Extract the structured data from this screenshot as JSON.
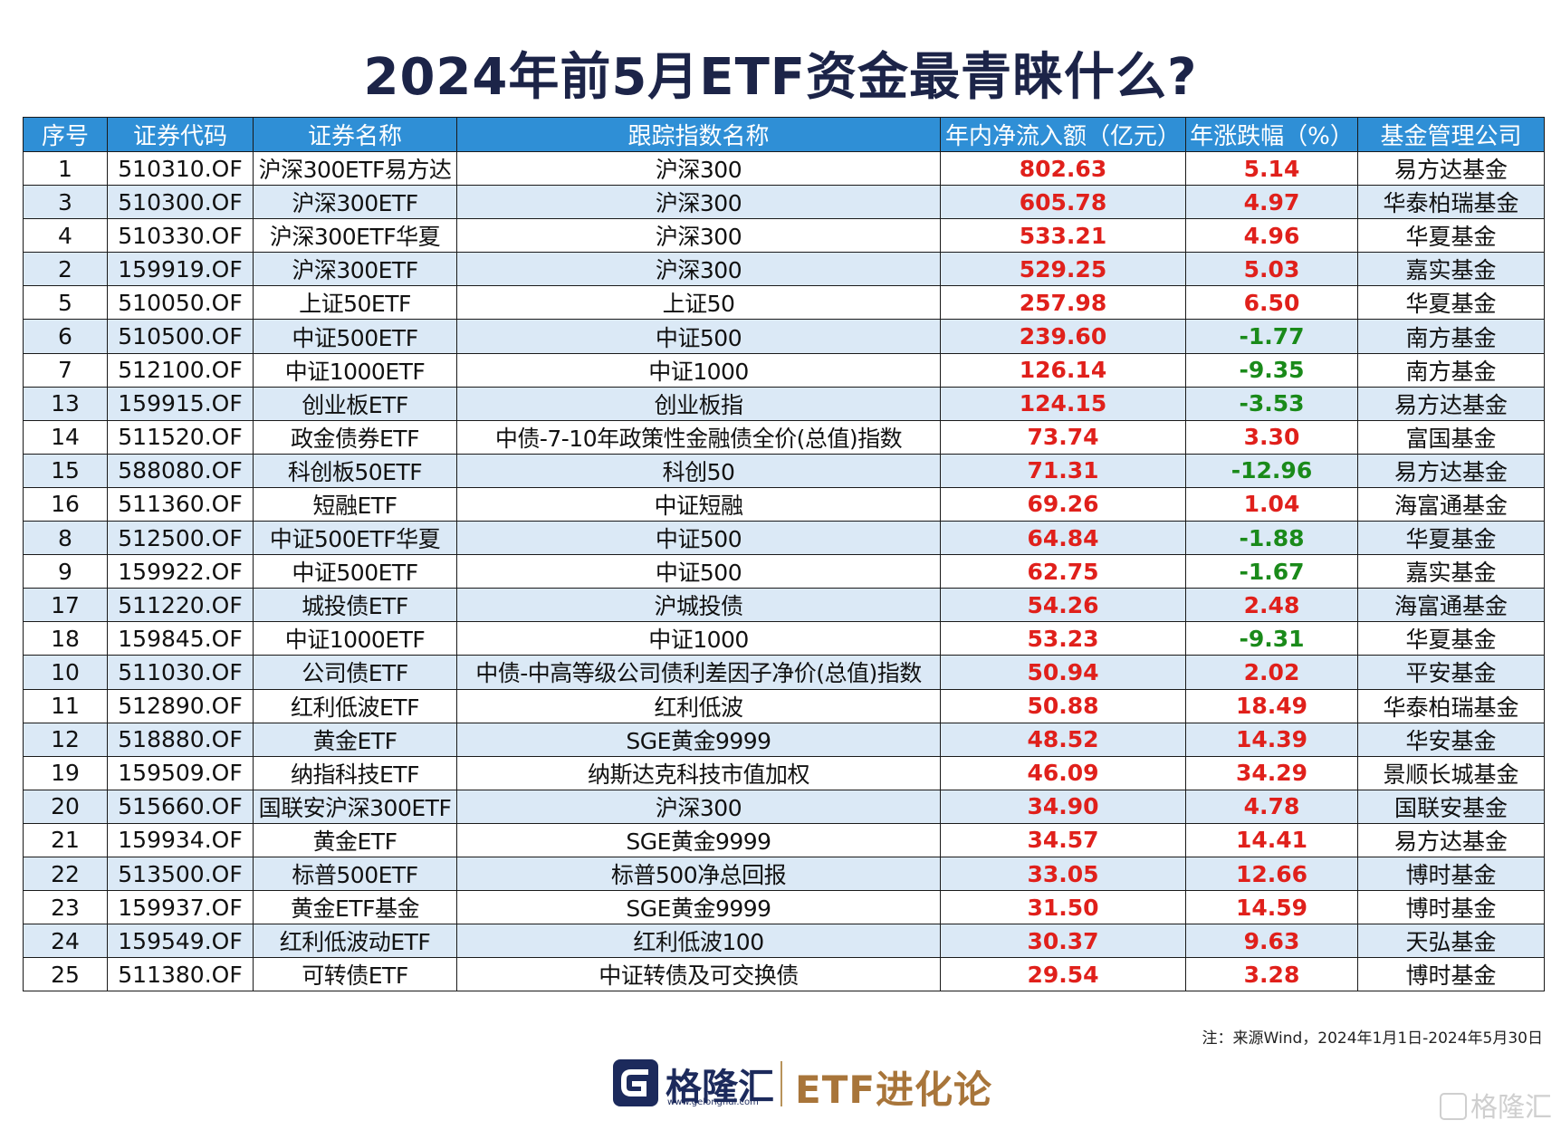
{
  "title": "2024年前5月ETF资金最青睐什么?",
  "headers": [
    "序号",
    "证券代码",
    "证券名称",
    "跟踪指数名称",
    "年内净流入额（亿元）",
    "年涨跌幅（%）",
    "基金管理公司"
  ],
  "rows": [
    {
      "no": "1",
      "code": "510310.OF",
      "name": "沪深300ETF易方达",
      "index": "沪深300",
      "flow": "802.63",
      "chg": "5.14",
      "company": "易方达基金"
    },
    {
      "no": "3",
      "code": "510300.OF",
      "name": "沪深300ETF",
      "index": "沪深300",
      "flow": "605.78",
      "chg": "4.97",
      "company": "华泰柏瑞基金"
    },
    {
      "no": "4",
      "code": "510330.OF",
      "name": "沪深300ETF华夏",
      "index": "沪深300",
      "flow": "533.21",
      "chg": "4.96",
      "company": "华夏基金"
    },
    {
      "no": "2",
      "code": "159919.OF",
      "name": "沪深300ETF",
      "index": "沪深300",
      "flow": "529.25",
      "chg": "5.03",
      "company": "嘉实基金"
    },
    {
      "no": "5",
      "code": "510050.OF",
      "name": "上证50ETF",
      "index": "上证50",
      "flow": "257.98",
      "chg": "6.50",
      "company": "华夏基金"
    },
    {
      "no": "6",
      "code": "510500.OF",
      "name": "中证500ETF",
      "index": "中证500",
      "flow": "239.60",
      "chg": "-1.77",
      "company": "南方基金"
    },
    {
      "no": "7",
      "code": "512100.OF",
      "name": "中证1000ETF",
      "index": "中证1000",
      "flow": "126.14",
      "chg": "-9.35",
      "company": "南方基金"
    },
    {
      "no": "13",
      "code": "159915.OF",
      "name": "创业板ETF",
      "index": "创业板指",
      "flow": "124.15",
      "chg": "-3.53",
      "company": "易方达基金"
    },
    {
      "no": "14",
      "code": "511520.OF",
      "name": "政金债券ETF",
      "index": "中债-7-10年政策性金融债全价(总值)指数",
      "flow": "73.74",
      "chg": "3.30",
      "company": "富国基金"
    },
    {
      "no": "15",
      "code": "588080.OF",
      "name": "科创板50ETF",
      "index": "科创50",
      "flow": "71.31",
      "chg": "-12.96",
      "company": "易方达基金"
    },
    {
      "no": "16",
      "code": "511360.OF",
      "name": "短融ETF",
      "index": "中证短融",
      "flow": "69.26",
      "chg": "1.04",
      "company": "海富通基金"
    },
    {
      "no": "8",
      "code": "512500.OF",
      "name": "中证500ETF华夏",
      "index": "中证500",
      "flow": "64.84",
      "chg": "-1.88",
      "company": "华夏基金"
    },
    {
      "no": "9",
      "code": "159922.OF",
      "name": "中证500ETF",
      "index": "中证500",
      "flow": "62.75",
      "chg": "-1.67",
      "company": "嘉实基金"
    },
    {
      "no": "17",
      "code": "511220.OF",
      "name": "城投债ETF",
      "index": "沪城投债",
      "flow": "54.26",
      "chg": "2.48",
      "company": "海富通基金"
    },
    {
      "no": "18",
      "code": "159845.OF",
      "name": "中证1000ETF",
      "index": "中证1000",
      "flow": "53.23",
      "chg": "-9.31",
      "company": "华夏基金"
    },
    {
      "no": "10",
      "code": "511030.OF",
      "name": "公司债ETF",
      "index": "中债-中高等级公司债利差因子净价(总值)指数",
      "flow": "50.94",
      "chg": "2.02",
      "company": "平安基金"
    },
    {
      "no": "11",
      "code": "512890.OF",
      "name": "红利低波ETF",
      "index": "红利低波",
      "flow": "50.88",
      "chg": "18.49",
      "company": "华泰柏瑞基金"
    },
    {
      "no": "12",
      "code": "518880.OF",
      "name": "黄金ETF",
      "index": "SGE黄金9999",
      "flow": "48.52",
      "chg": "14.39",
      "company": "华安基金"
    },
    {
      "no": "19",
      "code": "159509.OF",
      "name": "纳指科技ETF",
      "index": "纳斯达克科技市值加权",
      "flow": "46.09",
      "chg": "34.29",
      "company": "景顺长城基金"
    },
    {
      "no": "20",
      "code": "515660.OF",
      "name": "国联安沪深300ETF",
      "index": "沪深300",
      "flow": "34.90",
      "chg": "4.78",
      "company": "国联安基金"
    },
    {
      "no": "21",
      "code": "159934.OF",
      "name": "黄金ETF",
      "index": "SGE黄金9999",
      "flow": "34.57",
      "chg": "14.41",
      "company": "易方达基金"
    },
    {
      "no": "22",
      "code": "513500.OF",
      "name": "标普500ETF",
      "index": "标普500净总回报",
      "flow": "33.05",
      "chg": "12.66",
      "company": "博时基金"
    },
    {
      "no": "23",
      "code": "159937.OF",
      "name": "黄金ETF基金",
      "index": "SGE黄金9999",
      "flow": "31.50",
      "chg": "14.59",
      "company": "博时基金"
    },
    {
      "no": "24",
      "code": "159549.OF",
      "name": "红利低波动ETF",
      "index": "红利低波100",
      "flow": "30.37",
      "chg": "9.63",
      "company": "天弘基金"
    },
    {
      "no": "25",
      "code": "511380.OF",
      "name": "可转债ETF",
      "index": "中证转债及可交换债",
      "flow": "29.54",
      "chg": "3.28",
      "company": "博时基金"
    }
  ],
  "note": "注：来源Wind，2024年1月1日-2024年5月30日",
  "footer": {
    "brand": "格隆汇",
    "url": "www.gelonghui.com",
    "brand2": "ETF进化论",
    "watermark": "格隆汇"
  },
  "colors": {
    "header_bg": "#2f8fd6",
    "positive": "#e0201b",
    "negative": "#1a8a1a",
    "stripe": "#dbe9f6",
    "title": "#1c2448"
  }
}
